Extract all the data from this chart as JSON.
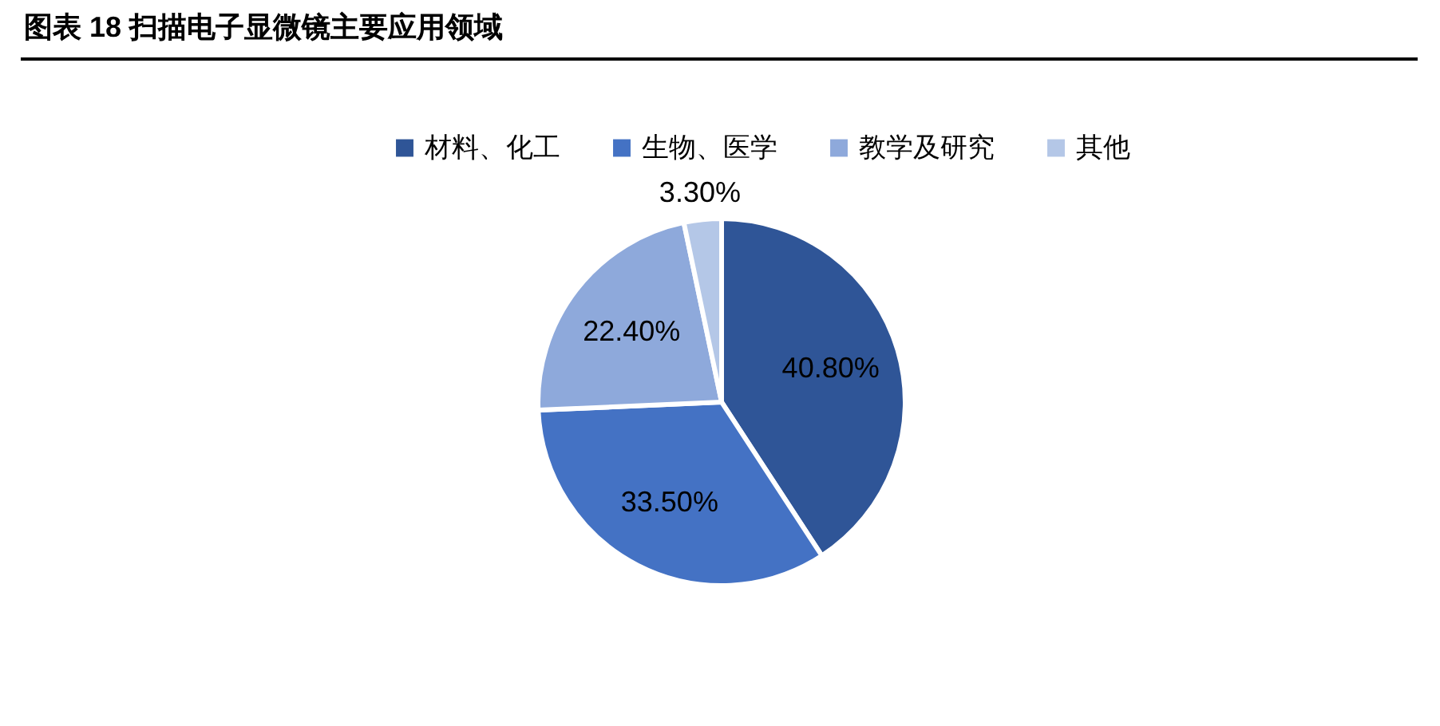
{
  "chart_data": {
    "type": "pie",
    "title": "图表 18 扫描电子显微镜主要应用领域",
    "categories": [
      "材料、化工",
      "生物、医学",
      "教学及研究",
      "其他"
    ],
    "values": [
      40.8,
      33.5,
      22.4,
      3.3
    ],
    "colors": [
      "#2f5597",
      "#4472c4",
      "#8ea9db",
      "#b4c7e7"
    ],
    "value_labels": [
      "40.80%",
      "33.50%",
      "22.40%",
      "3.30%"
    ],
    "legend": "top"
  }
}
